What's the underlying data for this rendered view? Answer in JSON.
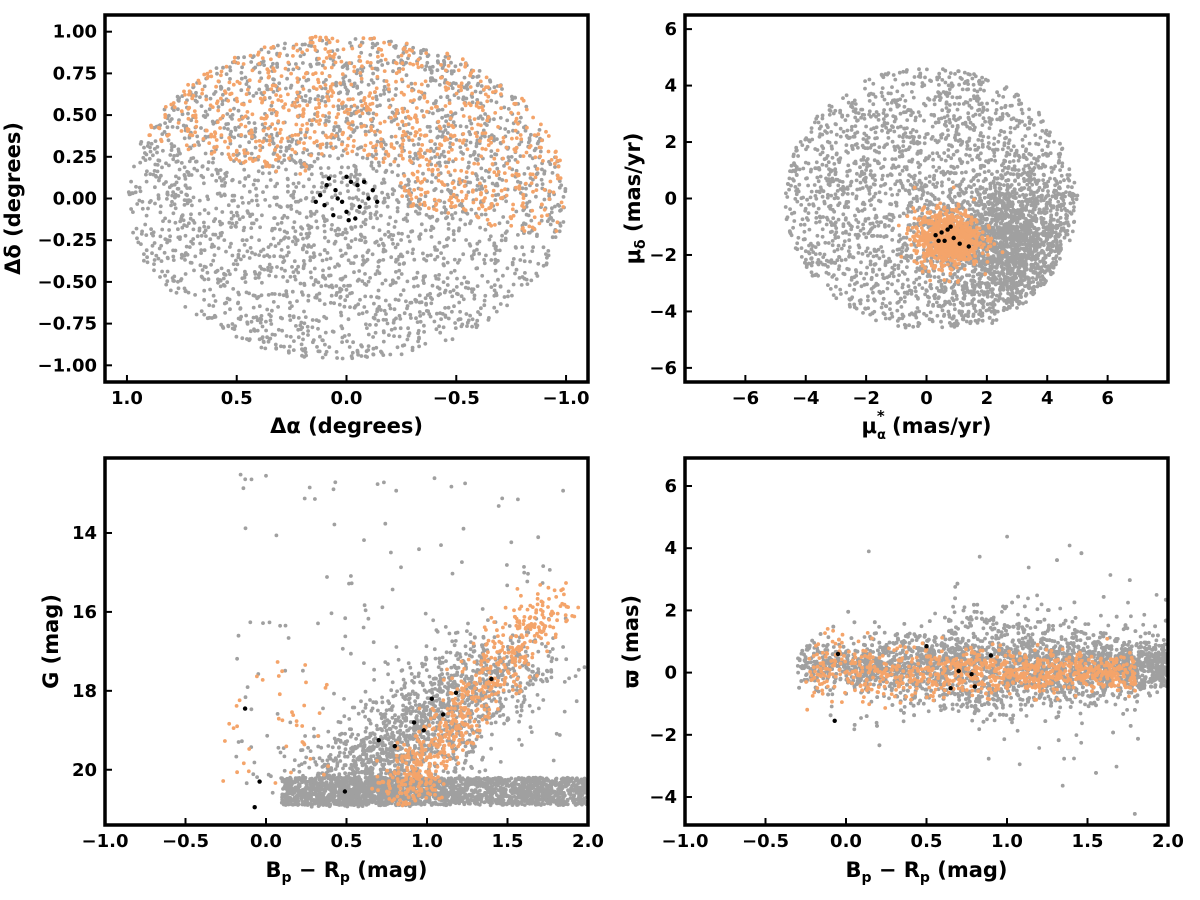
{
  "figure": {
    "colors": {
      "field": "#a0a0a0",
      "members": "#f4a46a",
      "core": "#000000",
      "frame": "#000000"
    }
  },
  "chart_data": [
    {
      "id": "spatial",
      "type": "scatter",
      "xlabel_parts": [
        "Δα",
        " (degrees)"
      ],
      "ylabel": "Δδ (degrees)",
      "xlim": [
        1.1,
        -1.1
      ],
      "ylim": [
        -1.1,
        1.1
      ],
      "xticks": [
        1.0,
        0.5,
        0.0,
        -0.5,
        -1.0
      ],
      "xtick_labels": [
        "1.0",
        "0.5",
        "0.0",
        "−0.5",
        "−1.0"
      ],
      "yticks": [
        1.0,
        0.75,
        0.5,
        0.25,
        0.0,
        -0.25,
        -0.5,
        -0.75,
        -1.0
      ],
      "ytick_labels": [
        "1.00",
        "0.75",
        "0.50",
        "0.25",
        "0.00",
        "−0.25",
        "−0.50",
        "−0.75",
        "−1.00"
      ],
      "grid": false,
      "series": [
        {
          "role": "field",
          "color": "#a0a0a0",
          "distribution": "disk",
          "center": [
            0,
            0
          ],
          "radius": 1.0,
          "count": 2600
        },
        {
          "role": "members",
          "color": "#f4a46a",
          "distribution": "arc",
          "center": [
            0.0,
            0.05
          ],
          "radius_range": [
            0.22,
            1.0
          ],
          "angle_deg_range": [
            20,
            200
          ],
          "count": 900
        },
        {
          "role": "core",
          "color": "#000000",
          "points": [
            [
              0.08,
              0.12
            ],
            [
              0.05,
              0.05
            ],
            [
              0.02,
              -0.02
            ],
            [
              0.1,
              -0.04
            ],
            [
              0.0,
              -0.08
            ],
            [
              -0.04,
              -0.12
            ],
            [
              -0.08,
              0.1
            ],
            [
              -0.12,
              0.05
            ],
            [
              -0.02,
              0.1
            ],
            [
              0.06,
              -0.1
            ],
            [
              -0.1,
              0.0
            ],
            [
              0.04,
              0.0
            ],
            [
              -0.06,
              -0.05
            ],
            [
              0.12,
              0.02
            ],
            [
              -0.14,
              -0.02
            ],
            [
              0.0,
              0.13
            ],
            [
              -0.05,
              0.08
            ],
            [
              0.09,
              0.08
            ],
            [
              -0.01,
              -0.13
            ],
            [
              0.14,
              -0.02
            ]
          ]
        }
      ]
    },
    {
      "id": "proper-motion",
      "type": "scatter",
      "xlabel_parts": [
        "μ",
        "α",
        "*",
        "  (mas/yr)"
      ],
      "ylabel_parts": [
        "μ",
        "δ",
        " (mas/yr)"
      ],
      "xlim": [
        -8.0,
        8.0
      ],
      "ylim": [
        -6.5,
        6.5
      ],
      "xticks": [
        -6,
        -4,
        -2,
        0,
        2,
        4,
        6
      ],
      "xtick_labels": [
        "−6",
        "−4",
        "−2",
        "0",
        "2",
        "4",
        "6"
      ],
      "yticks": [
        6,
        4,
        2,
        0,
        -2,
        -4,
        -6
      ],
      "ytick_labels": [
        "6",
        "4",
        "2",
        "0",
        "−2",
        "−4",
        "−6"
      ],
      "grid": false,
      "series": [
        {
          "role": "field",
          "color": "#a0a0a0",
          "distribution": "disk",
          "center": [
            0.1,
            0.0
          ],
          "radius": 4.8,
          "count": 2200
        },
        {
          "role": "field-clump",
          "color": "#a0a0a0",
          "distribution": "gauss",
          "center": [
            2.8,
            -1.6
          ],
          "sigma": [
            1.1,
            1.3
          ],
          "clip_center": [
            0.1,
            0.0
          ],
          "clip_radius": 4.9,
          "count": 1500
        },
        {
          "role": "members",
          "color": "#f4a46a",
          "distribution": "gauss",
          "center": [
            0.7,
            -1.4
          ],
          "sigma": [
            0.55,
            0.5
          ],
          "count": 800
        },
        {
          "role": "core",
          "color": "#000000",
          "points": [
            [
              0.5,
              -1.2
            ],
            [
              0.9,
              -1.4
            ],
            [
              0.7,
              -1.1
            ],
            [
              0.3,
              -1.3
            ],
            [
              1.1,
              -1.6
            ],
            [
              0.6,
              -1.5
            ],
            [
              0.8,
              -1.0
            ],
            [
              1.4,
              -1.7
            ],
            [
              0.4,
              -1.5
            ]
          ]
        }
      ]
    },
    {
      "id": "cmd",
      "type": "scatter",
      "xlabel_parts": [
        "B",
        "p",
        " − R",
        "p",
        " (mag)"
      ],
      "ylabel": "G (mag)",
      "xlim": [
        -1.0,
        2.0
      ],
      "ylim": [
        21.4,
        12.1
      ],
      "xticks": [
        -1.0,
        -0.5,
        0.0,
        0.5,
        1.0,
        1.5,
        2.0
      ],
      "xtick_labels": [
        "−1.0",
        "−0.5",
        "0.0",
        "0.5",
        "1.0",
        "1.5",
        "2.0"
      ],
      "yticks": [
        20,
        18,
        16,
        14
      ],
      "ytick_labels": [
        "20",
        "18",
        "16",
        "14"
      ],
      "grid": false,
      "series": [
        {
          "role": "field",
          "color": "#a0a0a0",
          "distribution": "band",
          "x_range": [
            0.1,
            2.0
          ],
          "y_range": [
            20.2,
            20.9
          ],
          "count": 2000
        },
        {
          "role": "field-sequence",
          "color": "#a0a0a0",
          "distribution": "sequence",
          "top": [
            0.5,
            20.6
          ],
          "bottom": [
            1.5,
            17.0
          ],
          "spread": [
            0.22,
            0.9
          ],
          "count": 1600
        },
        {
          "role": "field-scatter",
          "color": "#a0a0a0",
          "distribution": "uniform",
          "x_range": [
            -0.2,
            1.9
          ],
          "y_range": [
            12.5,
            20.9
          ],
          "count": 160
        },
        {
          "role": "members",
          "color": "#f4a46a",
          "distribution": "sequence",
          "top": [
            0.85,
            20.6
          ],
          "bottom": [
            1.75,
            15.7
          ],
          "spread": [
            0.1,
            0.6
          ],
          "count": 650
        },
        {
          "role": "members-blue",
          "color": "#f4a46a",
          "distribution": "uniform",
          "x_range": [
            -0.3,
            0.4
          ],
          "y_range": [
            17.2,
            20.8
          ],
          "count": 40
        },
        {
          "role": "core",
          "color": "#000000",
          "points": [
            [
              -0.07,
              20.95
            ],
            [
              0.49,
              20.55
            ],
            [
              0.7,
              19.25
            ],
            [
              0.8,
              19.4
            ],
            [
              0.92,
              18.8
            ],
            [
              1.03,
              18.2
            ],
            [
              1.18,
              18.05
            ],
            [
              1.4,
              17.7
            ],
            [
              -0.13,
              18.45
            ],
            [
              -0.04,
              20.3
            ],
            [
              0.98,
              19.0
            ],
            [
              1.1,
              18.6
            ]
          ]
        }
      ]
    },
    {
      "id": "parallax",
      "type": "scatter",
      "xlabel_parts": [
        "B",
        "p",
        " − R",
        "p",
        " (mag)"
      ],
      "ylabel": "ϖ (mas)",
      "xlim": [
        -1.0,
        2.0
      ],
      "ylim": [
        -4.9,
        6.9
      ],
      "xticks": [
        -1.0,
        -0.5,
        0.0,
        0.5,
        1.0,
        1.5,
        2.0
      ],
      "xtick_labels": [
        "−1.0",
        "−0.5",
        "0.0",
        "0.5",
        "1.0",
        "1.5",
        "2.0"
      ],
      "yticks": [
        6,
        4,
        2,
        0,
        -2,
        -4
      ],
      "ytick_labels": [
        "6",
        "4",
        "2",
        "0",
        "−2",
        "−4"
      ],
      "grid": false,
      "series": [
        {
          "role": "field",
          "color": "#a0a0a0",
          "distribution": "fan",
          "x_range": [
            -0.3,
            2.0
          ],
          "center_y": 0.2,
          "count": 3800
        },
        {
          "role": "members",
          "color": "#f4a46a",
          "distribution": "fan",
          "x_range": [
            -0.25,
            1.8
          ],
          "center_y": 0.0,
          "narrow": true,
          "count": 900
        },
        {
          "role": "core",
          "color": "#000000",
          "points": [
            [
              -0.05,
              0.6
            ],
            [
              -0.07,
              -1.55
            ],
            [
              0.5,
              0.85
            ],
            [
              0.65,
              -0.5
            ],
            [
              0.7,
              0.05
            ],
            [
              0.8,
              -0.45
            ],
            [
              0.9,
              0.55
            ],
            [
              0.78,
              -0.05
            ]
          ]
        }
      ]
    }
  ]
}
